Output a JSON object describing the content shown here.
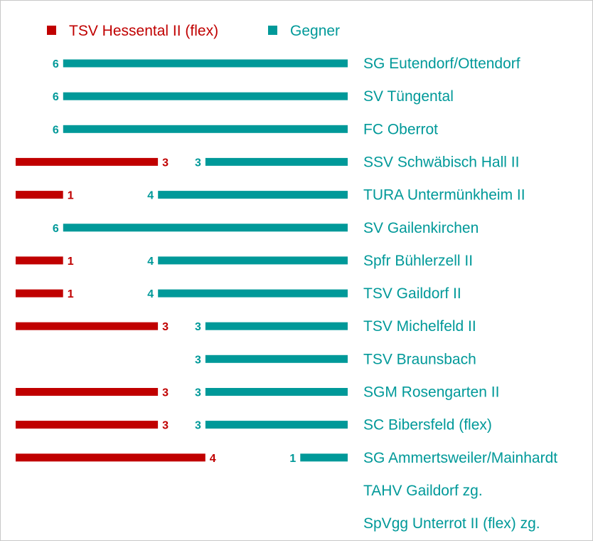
{
  "colors": {
    "home": "#c00000",
    "away": "#009999"
  },
  "chart_data": {
    "type": "bar",
    "orientation": "horizontal",
    "legend_position": "top-left",
    "grid": false,
    "max_value": 6,
    "series": [
      {
        "name": "TSV Hessental II (flex)",
        "key": "home",
        "values": [
          null,
          null,
          null,
          3,
          1,
          null,
          1,
          1,
          3,
          null,
          3,
          3,
          4,
          null,
          null
        ]
      },
      {
        "name": "Gegner",
        "key": "away",
        "values": [
          6,
          6,
          6,
          3,
          4,
          6,
          4,
          4,
          3,
          3,
          3,
          3,
          1,
          null,
          null
        ]
      }
    ],
    "categories": [
      "SG Eutendorf/Ottendorf",
      "SV Tüngental",
      "FC Oberrot",
      "SSV Schwäbisch Hall II",
      "TURA Untermünkheim II",
      "SV Gailenkirchen",
      "Spfr Bühlerzell II",
      "TSV Gaildorf II",
      "TSV Michelfeld II",
      "TSV Braunsbach",
      "SGM Rosengarten II",
      "SC Bibersfeld (flex)",
      "SG Ammertsweiler/Mainhardt",
      "TAHV Gaildorf zg.",
      "SpVgg Unterrot II (flex) zg."
    ]
  }
}
